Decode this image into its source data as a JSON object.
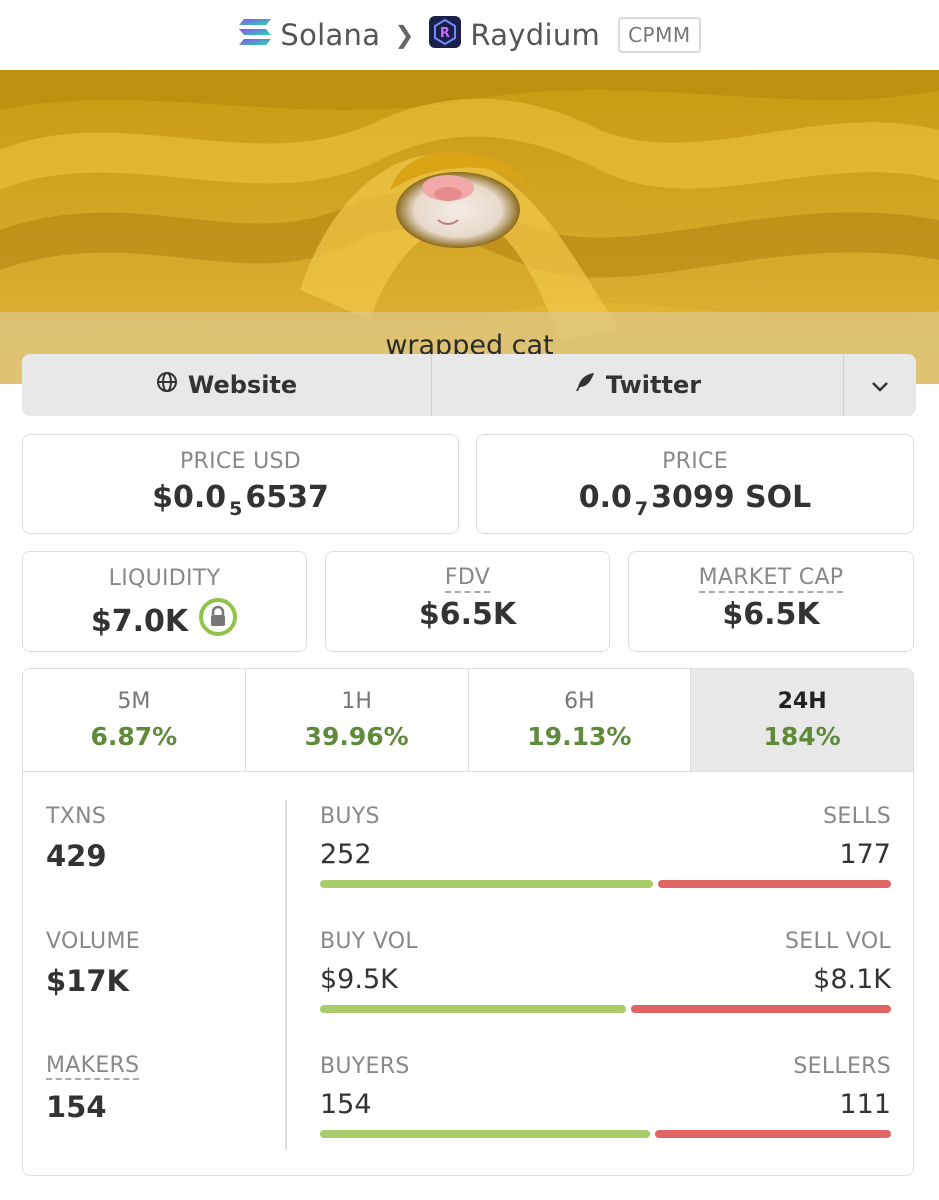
{
  "header": {
    "chain": "Solana",
    "dex": "Raydium",
    "pool_type": "CPMM",
    "chain_icon": "solana-icon",
    "dex_icon": "raydium-icon"
  },
  "banner": {
    "caption": "wrapped cat"
  },
  "links": {
    "website_label": "Website",
    "twitter_label": "Twitter"
  },
  "price_usd": {
    "label": "PRICE USD",
    "prefix": "$0.0",
    "zeros": "5",
    "digits": "6537"
  },
  "price_native": {
    "label": "PRICE",
    "prefix": "0.0",
    "zeros": "7",
    "digits": "3099",
    "unit": "SOL"
  },
  "liquidity": {
    "label": "LIQUIDITY",
    "value": "$7.0K"
  },
  "fdv": {
    "label": "FDV",
    "value": "$6.5K"
  },
  "market_cap": {
    "label": "MARKET CAP",
    "value": "$6.5K"
  },
  "timeframes": [
    {
      "label": "5M",
      "change": "6.87%"
    },
    {
      "label": "1H",
      "change": "39.96%"
    },
    {
      "label": "6H",
      "change": "19.13%"
    },
    {
      "label": "24H",
      "change": "184%"
    }
  ],
  "active_timeframe": "24H",
  "stats": {
    "txns": {
      "label": "TXNS",
      "value": "429"
    },
    "volume": {
      "label": "VOLUME",
      "value": "$17K"
    },
    "makers": {
      "label": "MAKERS",
      "value": "154"
    }
  },
  "splits": {
    "txns": {
      "left_label": "BUYS",
      "right_label": "SELLS",
      "left_value": "252",
      "right_value": "177",
      "buy_fraction": 0.587
    },
    "volume": {
      "left_label": "BUY VOL",
      "right_label": "SELL VOL",
      "left_value": "$9.5K",
      "right_value": "$8.1K",
      "buy_fraction": 0.54
    },
    "makers": {
      "left_label": "BUYERS",
      "right_label": "SELLERS",
      "left_value": "154",
      "right_value": "111",
      "buy_fraction": 0.581
    }
  },
  "colors": {
    "positive": "#5e8a3a",
    "buy_bar": "#a8cc6a",
    "sell_bar": "#e06464",
    "lock_ring": "#8fc34a"
  }
}
